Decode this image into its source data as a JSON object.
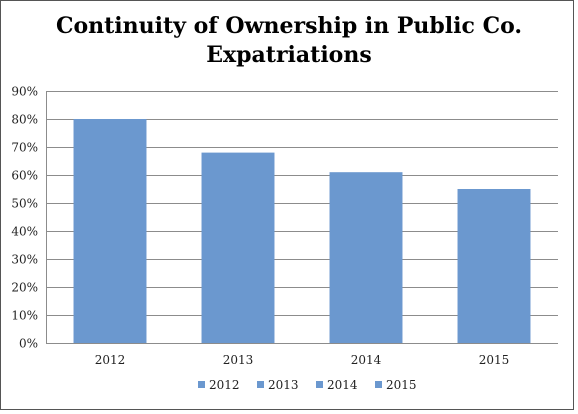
{
  "chart_data": {
    "type": "bar",
    "title_lines": [
      "Continuity of Ownership in Public Co.",
      "Expatriations"
    ],
    "categories": [
      "2012",
      "2013",
      "2014",
      "2015"
    ],
    "values": [
      0.8,
      0.68,
      0.61,
      0.55
    ],
    "ylim": [
      0,
      0.9
    ],
    "yticks": [
      0,
      0.1,
      0.2,
      0.3,
      0.4,
      0.5,
      0.6,
      0.7,
      0.8,
      0.9
    ],
    "ytick_labels": [
      "0%",
      "10%",
      "20%",
      "30%",
      "40%",
      "50%",
      "60%",
      "70%",
      "80%",
      "90%"
    ],
    "legend": [
      "2012",
      "2013",
      "2014",
      "2015"
    ],
    "legend_position": "bottom",
    "grid": true,
    "bar_color": "#6b98cf",
    "grid_color": "#8c8c8c"
  }
}
